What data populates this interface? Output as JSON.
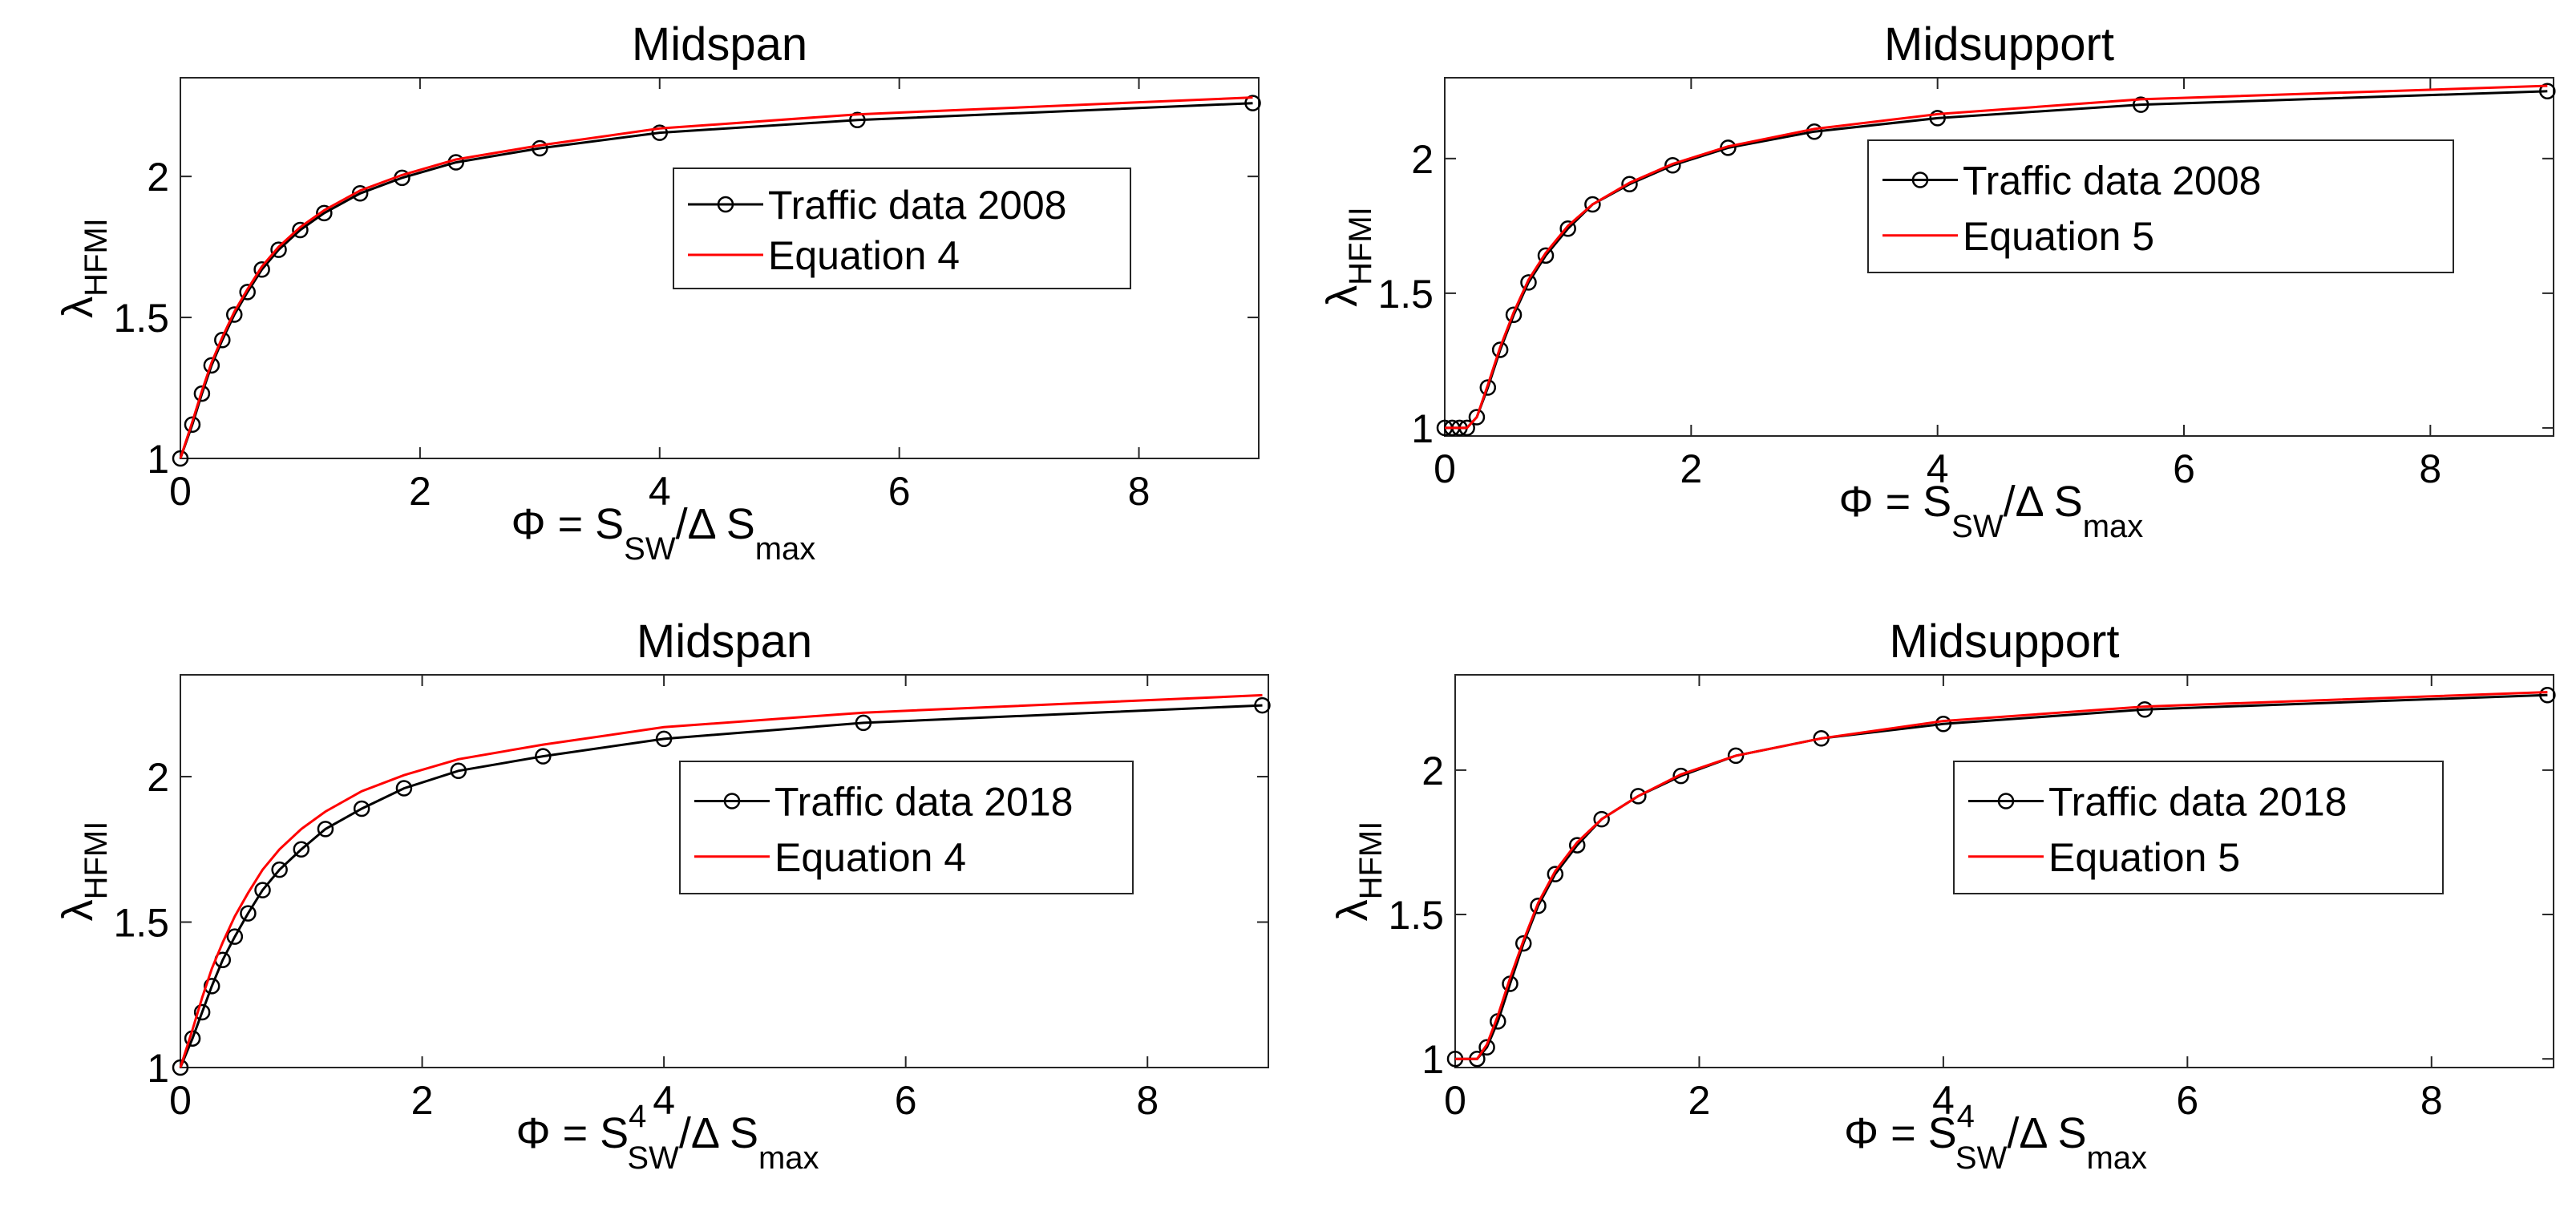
{
  "chart_data": [
    {
      "type": "line",
      "title": "Midspan",
      "xlabel": "Φ = S_SW / Δ S_max",
      "xlabel_parts": {
        "prefix": "Φ = S",
        "sub1": "SW",
        "sup1": "",
        "mid": "/Δ S",
        "sub2": "max"
      },
      "ylabel_parts": {
        "main": "λ",
        "sub": "HFMI"
      },
      "xlim": [
        0,
        9
      ],
      "ylim": [
        1,
        2.35
      ],
      "xticks": [
        0,
        2,
        4,
        6,
        8
      ],
      "yticks": [
        1,
        1.5,
        2
      ],
      "xtick_labels": [
        "0",
        "2",
        "4",
        "6",
        "8"
      ],
      "ytick_labels": [
        "1",
        "1.5",
        "2"
      ],
      "legend_labels": [
        "Traffic data 2008",
        "Equation 4"
      ],
      "legend_position": "center-right",
      "series": [
        {
          "name": "Traffic data 2008",
          "color": "#000000",
          "marker": "circle",
          "x": [
            0.0,
            0.1,
            0.18,
            0.26,
            0.35,
            0.45,
            0.56,
            0.68,
            0.82,
            1.0,
            1.2,
            1.5,
            1.85,
            2.3,
            3.0,
            4.0,
            5.65,
            8.95
          ],
          "y": [
            1.0,
            1.12,
            1.23,
            1.33,
            1.42,
            1.51,
            1.59,
            1.67,
            1.74,
            1.81,
            1.87,
            1.94,
            1.995,
            2.05,
            2.1,
            2.155,
            2.2,
            2.26
          ]
        },
        {
          "name": "Equation 4",
          "color": "#ff0000",
          "marker": "none",
          "x": [
            0.0,
            0.1,
            0.18,
            0.26,
            0.35,
            0.45,
            0.56,
            0.68,
            0.82,
            1.0,
            1.2,
            1.5,
            1.85,
            2.3,
            3.0,
            4.0,
            5.65,
            8.95
          ],
          "y": [
            1.0,
            1.13,
            1.24,
            1.34,
            1.43,
            1.52,
            1.6,
            1.68,
            1.75,
            1.82,
            1.88,
            1.95,
            2.005,
            2.06,
            2.11,
            2.17,
            2.22,
            2.28
          ]
        }
      ]
    },
    {
      "type": "line",
      "title": "Midsupport",
      "xlabel": "Φ = S_SW / Δ S_max",
      "xlabel_parts": {
        "prefix": "Φ = S",
        "sub1": "SW",
        "sup1": "",
        "mid": "/Δ S",
        "sub2": "max"
      },
      "ylabel_parts": {
        "main": "λ",
        "sub": "HFMI"
      },
      "xlim": [
        0,
        9
      ],
      "ylim": [
        0.97,
        2.3
      ],
      "xticks": [
        0,
        2,
        4,
        6,
        8
      ],
      "yticks": [
        1,
        1.5,
        2
      ],
      "xtick_labels": [
        "0",
        "2",
        "4",
        "6",
        "8"
      ],
      "ytick_labels": [
        "1",
        "1.5",
        "2"
      ],
      "legend_labels": [
        "Traffic data 2008",
        "Equation 5"
      ],
      "legend_position": "center-right",
      "series": [
        {
          "name": "Traffic data 2008",
          "color": "#000000",
          "marker": "circle",
          "x": [
            0.0,
            0.06,
            0.12,
            0.18,
            0.26,
            0.35,
            0.45,
            0.56,
            0.68,
            0.82,
            1.0,
            1.2,
            1.5,
            1.85,
            2.3,
            3.0,
            4.0,
            5.65,
            8.95
          ],
          "y": [
            1.0,
            1.0,
            1.0,
            1.0,
            1.04,
            1.15,
            1.29,
            1.42,
            1.54,
            1.64,
            1.74,
            1.83,
            1.905,
            1.975,
            2.04,
            2.1,
            2.15,
            2.2,
            2.25
          ]
        },
        {
          "name": "Equation 5",
          "color": "#ff0000",
          "marker": "none",
          "x": [
            0.0,
            0.06,
            0.12,
            0.18,
            0.26,
            0.35,
            0.45,
            0.56,
            0.68,
            0.82,
            1.0,
            1.2,
            1.5,
            1.85,
            2.3,
            3.0,
            4.0,
            5.65,
            8.95
          ],
          "y": [
            1.0,
            1.0,
            1.0,
            1.0,
            1.04,
            1.16,
            1.3,
            1.43,
            1.55,
            1.65,
            1.75,
            1.83,
            1.91,
            1.98,
            2.045,
            2.11,
            2.165,
            2.22,
            2.27
          ]
        }
      ]
    },
    {
      "type": "line",
      "title": "Midspan",
      "xlabel": "Φ = S^4_SW / Δ S_max",
      "xlabel_parts": {
        "prefix": "Φ = S",
        "sub1": "SW",
        "sup1": "4",
        "mid": "/Δ S",
        "sub2": "max"
      },
      "ylabel_parts": {
        "main": "λ",
        "sub": "HFMI"
      },
      "xlim": [
        0,
        9
      ],
      "ylim": [
        1,
        2.35
      ],
      "xticks": [
        0,
        2,
        4,
        6,
        8
      ],
      "yticks": [
        1,
        1.5,
        2
      ],
      "xtick_labels": [
        "0",
        "2",
        "4",
        "6",
        "8"
      ],
      "ytick_labels": [
        "1",
        "1.5",
        "2"
      ],
      "legend_labels": [
        "Traffic data 2018",
        "Equation 4"
      ],
      "legend_position": "center-right",
      "series": [
        {
          "name": "Traffic data 2018",
          "color": "#000000",
          "marker": "circle",
          "x": [
            0.0,
            0.1,
            0.18,
            0.26,
            0.35,
            0.45,
            0.56,
            0.68,
            0.82,
            1.0,
            1.2,
            1.5,
            1.85,
            2.3,
            3.0,
            4.0,
            5.65,
            8.95
          ],
          "y": [
            1.0,
            1.1,
            1.19,
            1.28,
            1.37,
            1.45,
            1.53,
            1.61,
            1.68,
            1.75,
            1.82,
            1.89,
            1.96,
            2.02,
            2.07,
            2.13,
            2.185,
            2.245
          ]
        },
        {
          "name": "Equation 4",
          "color": "#ff0000",
          "marker": "none",
          "x": [
            0.0,
            0.1,
            0.18,
            0.26,
            0.35,
            0.45,
            0.56,
            0.68,
            0.82,
            1.0,
            1.2,
            1.5,
            1.85,
            2.3,
            3.0,
            4.0,
            5.65,
            8.95
          ],
          "y": [
            1.0,
            1.13,
            1.24,
            1.34,
            1.43,
            1.52,
            1.6,
            1.68,
            1.75,
            1.82,
            1.88,
            1.95,
            2.005,
            2.06,
            2.11,
            2.17,
            2.22,
            2.28
          ]
        }
      ]
    },
    {
      "type": "line",
      "title": "Midsupport",
      "xlabel": "Φ = S^4_SW / Δ S_max",
      "xlabel_parts": {
        "prefix": "Φ = S",
        "sub1": "SW",
        "sup1": "4",
        "mid": "/Δ S",
        "sub2": "max"
      },
      "ylabel_parts": {
        "main": "λ",
        "sub": "HFMI"
      },
      "xlim": [
        0,
        9
      ],
      "ylim": [
        0.97,
        2.33
      ],
      "xticks": [
        0,
        2,
        4,
        6,
        8
      ],
      "yticks": [
        1,
        1.5,
        2
      ],
      "xtick_labels": [
        "0",
        "2",
        "4",
        "6",
        "8"
      ],
      "ytick_labels": [
        "1",
        "1.5",
        "2"
      ],
      "legend_labels": [
        "Traffic data 2018",
        "Equation 5"
      ],
      "legend_position": "center-right",
      "series": [
        {
          "name": "Traffic data 2018",
          "color": "#000000",
          "marker": "circle",
          "x": [
            0.0,
            0.18,
            0.26,
            0.35,
            0.45,
            0.56,
            0.68,
            0.82,
            1.0,
            1.2,
            1.5,
            1.85,
            2.3,
            3.0,
            4.0,
            5.65,
            8.95
          ],
          "y": [
            1.0,
            1.0,
            1.04,
            1.13,
            1.26,
            1.4,
            1.53,
            1.64,
            1.74,
            1.83,
            1.91,
            1.98,
            2.05,
            2.11,
            2.16,
            2.21,
            2.26
          ]
        },
        {
          "name": "Equation 5",
          "color": "#ff0000",
          "marker": "none",
          "x": [
            0.0,
            0.18,
            0.26,
            0.35,
            0.45,
            0.56,
            0.68,
            0.82,
            1.0,
            1.2,
            1.5,
            1.85,
            2.3,
            3.0,
            4.0,
            5.65,
            8.95
          ],
          "y": [
            1.0,
            1.0,
            1.05,
            1.15,
            1.28,
            1.41,
            1.54,
            1.65,
            1.75,
            1.83,
            1.91,
            1.985,
            2.05,
            2.11,
            2.17,
            2.22,
            2.27
          ]
        }
      ]
    }
  ]
}
